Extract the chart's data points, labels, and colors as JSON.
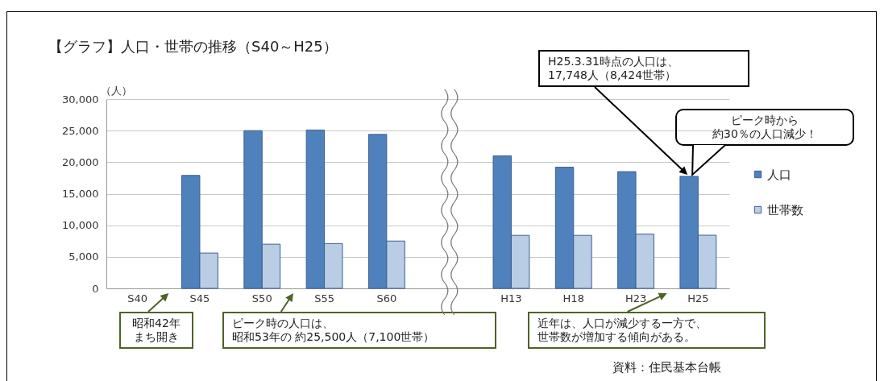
{
  "chart_data": {
    "type": "bar",
    "title": "【グラフ】人口・世帯の推移（S40～H25）",
    "ylabel": "（人）",
    "categories": [
      "S40",
      "S45",
      "S50",
      "S55",
      "S60",
      null,
      "H13",
      "H18",
      "H23",
      "H25"
    ],
    "series": [
      {
        "name": "人口",
        "color": "#4f81bd",
        "values": [
          null,
          17900,
          25000,
          25100,
          24400,
          null,
          21000,
          19200,
          18500,
          17748
        ]
      },
      {
        "name": "世帯数",
        "color": "#b9cde5",
        "values": [
          null,
          5600,
          7000,
          7100,
          7500,
          null,
          8400,
          8400,
          8600,
          8424
        ]
      }
    ],
    "ylim": [
      0,
      30000
    ],
    "yticks": [
      {
        "value": 0,
        "label": "0"
      },
      {
        "value": 5000,
        "label": "5,000"
      },
      {
        "value": 10000,
        "label": "10,000"
      },
      {
        "value": 15000,
        "label": "15,000"
      },
      {
        "value": 20000,
        "label": "20,000"
      },
      {
        "value": 25000,
        "label": "25,000"
      },
      {
        "value": 30000,
        "label": "30,000"
      }
    ],
    "grid": "y",
    "legend": "right",
    "annotations": [
      "H25.3.31時点の人口は、17,748人（8,424世帯）",
      "ピーク時から約30％の人口減少！",
      "昭和42年まち開き",
      "ピーク時の人口は、昭和53年の 約25,500人（7,100世帯）",
      "近年は、人口が減少する一方で、世帯数が増加する傾向がある。",
      "資料：住民基本台帳"
    ]
  }
}
